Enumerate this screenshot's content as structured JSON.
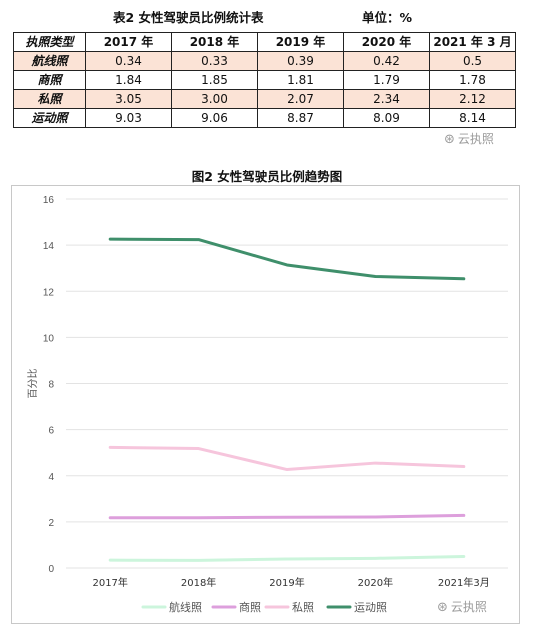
{
  "table": {
    "title": "表2 女性驾驶员比例统计表",
    "unit": "单位：%",
    "headers": [
      "执照类型",
      "2017 年",
      "2018 年",
      "2019 年",
      "2020 年",
      "2021 年 3 月"
    ],
    "rows": [
      {
        "label": "航线照",
        "values": [
          "0.34",
          "0.33",
          "0.39",
          "0.42",
          "0.5"
        ]
      },
      {
        "label": "商照",
        "values": [
          "1.84",
          "1.85",
          "1.81",
          "1.79",
          "1.78"
        ]
      },
      {
        "label": "私照",
        "values": [
          "3.05",
          "3.00",
          "2.07",
          "2.34",
          "2.12"
        ]
      },
      {
        "label": "运动照",
        "values": [
          "9.03",
          "9.06",
          "8.87",
          "8.09",
          "8.14"
        ]
      }
    ]
  },
  "watermark": {
    "text": "云执照",
    "icon": "wechat-icon"
  },
  "chart_data": {
    "type": "line",
    "title": "图2 女性驾驶员比例趋势图",
    "ylabel": "百分比",
    "xlabel": "",
    "categories": [
      "2017年",
      "2018年",
      "2019年",
      "2020年",
      "2021年3月"
    ],
    "ylim": [
      0,
      16
    ],
    "yticks": [
      0,
      2,
      4,
      6,
      8,
      10,
      12,
      14,
      16
    ],
    "grid": true,
    "legend_position": "bottom",
    "series": [
      {
        "name": "航线照",
        "color": "#ccf5dc",
        "values": [
          0.34,
          0.33,
          0.39,
          0.42,
          0.5
        ]
      },
      {
        "name": "商照",
        "color": "#dd9fdc",
        "values": [
          2.18,
          2.18,
          2.2,
          2.21,
          2.28
        ]
      },
      {
        "name": "私照",
        "color": "#f6c5dc",
        "values": [
          5.23,
          5.18,
          4.27,
          4.55,
          4.4
        ]
      },
      {
        "name": "运动照",
        "color": "#3f8f6b",
        "values": [
          14.26,
          14.24,
          13.14,
          12.64,
          12.54
        ]
      }
    ]
  }
}
